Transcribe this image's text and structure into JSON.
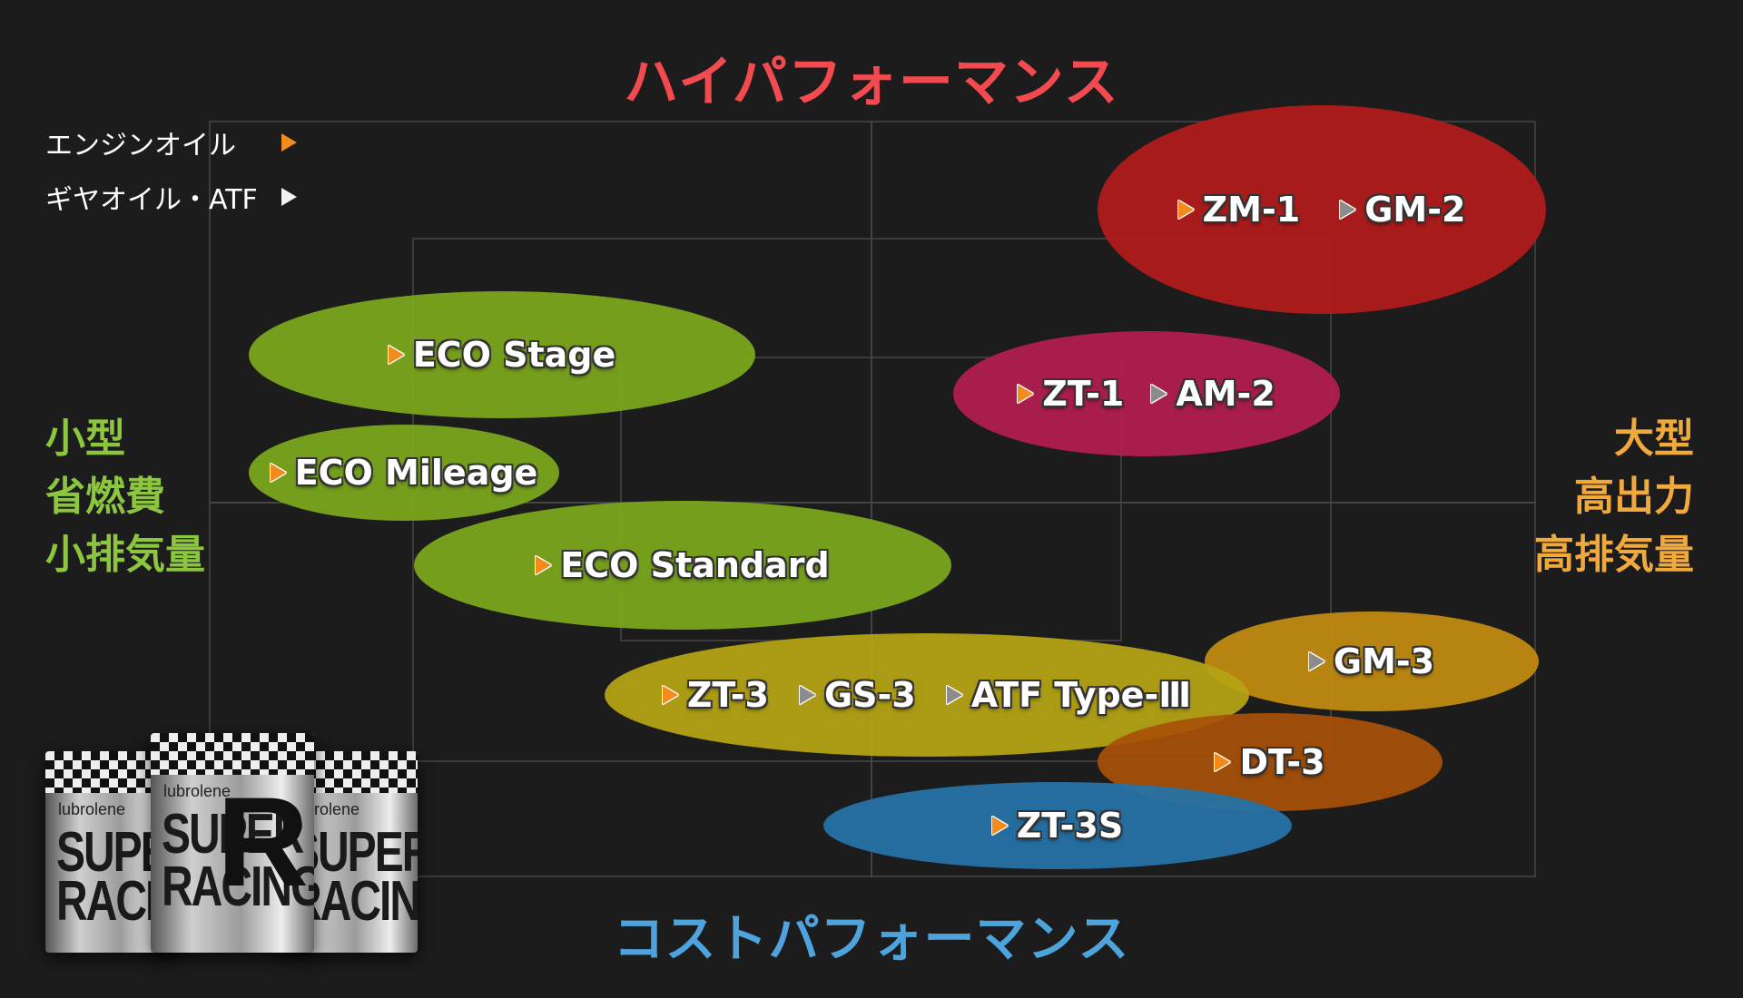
{
  "titles": {
    "top": "ハイパフォーマンス",
    "bottom": "コストパフォーマンス",
    "left": [
      "小型",
      "省燃費",
      "小排気量"
    ],
    "right": [
      "大型",
      "高出力",
      "高排気量"
    ]
  },
  "legend": [
    {
      "label": "エンジンオイル",
      "marker": "orange-triangle"
    },
    {
      "label": "ギヤオイル・ATF",
      "marker": "white-triangle"
    }
  ],
  "groups": [
    {
      "id": "zm1-gm2",
      "color": "#b31b1b",
      "items": [
        {
          "name": "ZM-1",
          "marker": "engine"
        },
        {
          "name": "GM-2",
          "marker": "gear"
        }
      ]
    },
    {
      "id": "eco-stage",
      "color": "#7aa51e",
      "items": [
        {
          "name": "ECO Stage",
          "marker": "engine"
        }
      ]
    },
    {
      "id": "zt1-am2",
      "color": "#b01e4e",
      "items": [
        {
          "name": "ZT-1",
          "marker": "engine"
        },
        {
          "name": "AM-2",
          "marker": "gear"
        }
      ]
    },
    {
      "id": "eco-mileage",
      "color": "#7aa51e",
      "items": [
        {
          "name": "ECO Mileage",
          "marker": "engine"
        }
      ]
    },
    {
      "id": "eco-standard",
      "color": "#7aa51e",
      "items": [
        {
          "name": "ECO Standard",
          "marker": "engine"
        }
      ]
    },
    {
      "id": "gm3",
      "color": "#c48c10",
      "items": [
        {
          "name": "GM-3",
          "marker": "gear"
        }
      ]
    },
    {
      "id": "zt3-gs3-atf",
      "color": "#b5a413",
      "items": [
        {
          "name": "ZT-3",
          "marker": "engine"
        },
        {
          "name": "GS-3",
          "marker": "gear"
        },
        {
          "name": "ATF Type-Ⅲ",
          "marker": "gear"
        }
      ]
    },
    {
      "id": "dt3",
      "color": "#a85008",
      "items": [
        {
          "name": "DT-3",
          "marker": "engine"
        }
      ]
    },
    {
      "id": "zt3s",
      "color": "#2672a6",
      "items": [
        {
          "name": "ZT-3S",
          "marker": "engine"
        }
      ]
    }
  ],
  "product": {
    "brand": "lubrolene",
    "line1": "SUPER",
    "line2": "RACING",
    "mark": "R"
  }
}
